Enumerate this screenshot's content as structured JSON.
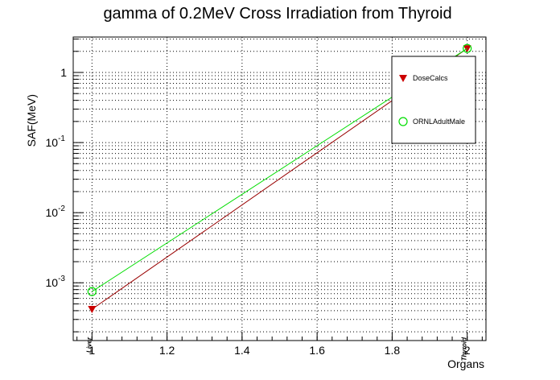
{
  "chart_data": {
    "type": "line",
    "title": "gamma of 0.2MeV Cross Irradiation from Thyroid",
    "xlabel": "Organs",
    "ylabel": "SAF(MeV)",
    "xlim": [
      0.95,
      2.05
    ],
    "ylim": [
      0.00015,
      3.2
    ],
    "yscale": "log",
    "grid": true,
    "legend_position": "top-right",
    "x_ticks": [
      "1",
      "1.2",
      "1.4",
      "1.6",
      "1.8",
      "2"
    ],
    "y_ticks": [
      {
        "base": "10",
        "exp": "-3",
        "value": 0.001
      },
      {
        "base": "10",
        "exp": "-2",
        "value": 0.01
      },
      {
        "base": "10",
        "exp": "-1",
        "value": 0.1
      },
      {
        "base": "1",
        "exp": "",
        "value": 1
      }
    ],
    "organ_labels": [
      {
        "x": 1,
        "text": "Liver"
      },
      {
        "x": 2,
        "text": "Thyroid"
      }
    ],
    "series": [
      {
        "name": "DoseCalcs",
        "color": "#cc0000",
        "line_color": "#990000",
        "marker": "triangle-down",
        "x": [
          1,
          2
        ],
        "values": [
          0.00042,
          2.2
        ]
      },
      {
        "name": "ORNLAdultMale",
        "color": "#00dd00",
        "line_color": "#00dd00",
        "marker": "open-circle",
        "x": [
          1,
          2
        ],
        "values": [
          0.00075,
          2.2
        ]
      }
    ]
  }
}
